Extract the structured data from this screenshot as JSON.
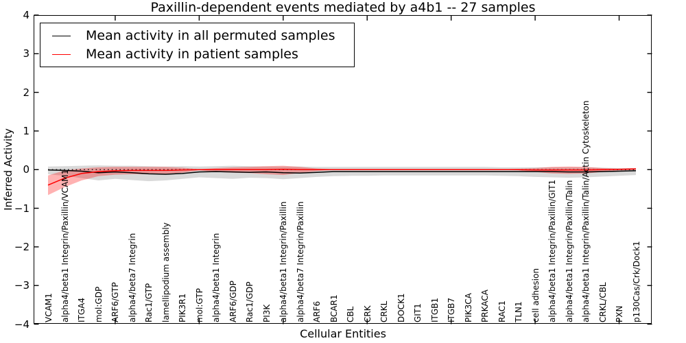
{
  "chart_data": {
    "type": "line",
    "title": "Paxillin-dependent events mediated by a4b1 -- 27 samples",
    "xlabel": "Cellular Entities",
    "ylabel": "Inferred Activity",
    "ylim": [
      -4,
      4
    ],
    "yticks": [
      -4,
      -3,
      -2,
      -1,
      0,
      1,
      2,
      3,
      4
    ],
    "xticks_numeric": [
      5,
      10,
      15,
      20,
      25,
      30,
      35
    ],
    "grid": false,
    "legend_position": "upper left",
    "background": "#ffffff",
    "zero_reference_line": {
      "y": 0,
      "style": "dotted",
      "color": "#000000"
    },
    "categories": [
      "VCAM1",
      "alpha4/beta1 Integrin/Paxillin/VCAM1",
      "ITGA4",
      "mol:GDP",
      "ARF6/GTP",
      "alpha4/beta7 Integrin",
      "Rac1/GTP",
      "lamellipodium assembly",
      "PIK3R1",
      "mol:GTP",
      "alpha4/beta1 Integrin",
      "ARF6/GDP",
      "Rac1/GDP",
      "PI3K",
      "alpha4/beta1 Integrin/Paxillin",
      "alpha4/beta7 Integrin/Paxillin",
      "ARF6",
      "BCAR1",
      "CBL",
      "CRK",
      "CRKL",
      "DOCK1",
      "GIT1",
      "ITGB1",
      "ITGB7",
      "PIK3CA",
      "PRKACA",
      "RAC1",
      "TLN1",
      "cell adhesion",
      "alpha4/beta1 Integrin/Paxillin/GIT1",
      "alpha4/beta1 Integrin/Paxillin/Talin",
      "alpha4/beta1 Integrin/Paxillin/Talin/Actin Cytoskeleton",
      "CRKL/CBL",
      "PXN",
      "p130Cas/Crk/Dock1"
    ],
    "series": [
      {
        "name": "Mean activity in all permuted samples",
        "color": "#000000",
        "band_color": "rgba(0,0,0,0.15)",
        "values": [
          -0.01,
          -0.02,
          -0.04,
          -0.08,
          -0.06,
          -0.08,
          -0.11,
          -0.12,
          -0.1,
          -0.06,
          -0.05,
          -0.06,
          -0.07,
          -0.06,
          -0.08,
          -0.09,
          -0.07,
          -0.05,
          -0.05,
          -0.05,
          -0.05,
          -0.05,
          -0.05,
          -0.05,
          -0.05,
          -0.05,
          -0.05,
          -0.05,
          -0.05,
          -0.05,
          -0.05,
          -0.06,
          -0.06,
          -0.05,
          -0.04,
          -0.03
        ],
        "band_hi": [
          0.08,
          0.09,
          0.1,
          0.11,
          0.1,
          0.1,
          0.09,
          0.08,
          0.09,
          0.08,
          0.09,
          0.1,
          0.09,
          0.08,
          0.08,
          0.08,
          0.07,
          0.07,
          0.07,
          0.07,
          0.07,
          0.07,
          0.07,
          0.07,
          0.07,
          0.07,
          0.07,
          0.06,
          0.06,
          0.06,
          0.06,
          0.06,
          0.06,
          0.05,
          0.04,
          0.04
        ],
        "band_lo": [
          -0.12,
          -0.16,
          -0.22,
          -0.28,
          -0.24,
          -0.27,
          -0.3,
          -0.28,
          -0.24,
          -0.2,
          -0.22,
          -0.24,
          -0.21,
          -0.22,
          -0.25,
          -0.22,
          -0.19,
          -0.17,
          -0.16,
          -0.16,
          -0.15,
          -0.15,
          -0.15,
          -0.15,
          -0.15,
          -0.15,
          -0.15,
          -0.16,
          -0.17,
          -0.19,
          -0.2,
          -0.21,
          -0.2,
          -0.18,
          -0.16,
          -0.14
        ]
      },
      {
        "name": "Mean activity in patient samples",
        "color": "#ff0000",
        "band_color": "rgba(255,0,0,0.30)",
        "values": [
          -0.4,
          -0.22,
          -0.1,
          -0.05,
          -0.03,
          -0.02,
          -0.02,
          -0.02,
          -0.01,
          0.0,
          0.0,
          0.0,
          0.0,
          0.0,
          0.01,
          0.0,
          0.0,
          0.0,
          0.0,
          0.0,
          0.0,
          0.0,
          0.0,
          0.0,
          0.0,
          0.0,
          0.0,
          0.0,
          0.0,
          -0.01,
          -0.01,
          -0.01,
          -0.01,
          0.0,
          0.01,
          0.02
        ],
        "band_hi": [
          -0.15,
          -0.02,
          0.03,
          0.06,
          0.07,
          0.07,
          0.07,
          0.07,
          0.05,
          0.01,
          0.04,
          0.06,
          0.07,
          0.09,
          0.1,
          0.07,
          0.03,
          0.01,
          0.01,
          0.01,
          0.01,
          0.01,
          0.01,
          0.01,
          0.01,
          0.01,
          0.01,
          0.01,
          0.02,
          0.04,
          0.07,
          0.08,
          0.07,
          0.04,
          0.02,
          0.03
        ],
        "band_lo": [
          -0.66,
          -0.45,
          -0.28,
          -0.17,
          -0.13,
          -0.12,
          -0.12,
          -0.11,
          -0.08,
          -0.02,
          -0.06,
          -0.08,
          -0.09,
          -0.12,
          -0.14,
          -0.09,
          -0.04,
          -0.01,
          -0.01,
          -0.01,
          -0.01,
          -0.01,
          -0.01,
          -0.01,
          -0.01,
          -0.01,
          -0.01,
          -0.01,
          -0.02,
          -0.06,
          -0.1,
          -0.11,
          -0.1,
          -0.06,
          -0.02,
          -0.01
        ]
      }
    ]
  }
}
